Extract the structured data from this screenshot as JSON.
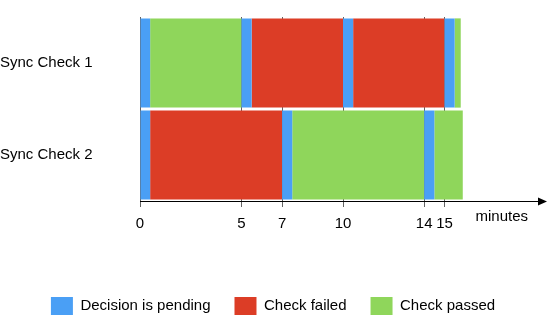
{
  "chart_data": {
    "type": "timeline",
    "orientation": "horizontal",
    "categories": [
      "Sync Check 1",
      "Sync Check 2"
    ],
    "x_label": "minutes",
    "xlim": [
      0,
      20
    ],
    "xticks": [
      0,
      5,
      7,
      10,
      14,
      15
    ],
    "grid": true,
    "legend": "bottom",
    "series": [
      {
        "name": "Decision is pending",
        "color": "#4a9ff5",
        "values": [
          [
            [
              0,
              0.5
            ],
            [
              5,
              5.5
            ],
            [
              10,
              10.5
            ],
            [
              15,
              15.5
            ]
          ],
          [
            [
              0,
              0.5
            ],
            [
              7,
              7.5
            ],
            [
              14,
              14.5
            ]
          ]
        ]
      },
      {
        "name": "Check failed",
        "color": "#dc3d26",
        "values": [
          [
            [
              5.5,
              10
            ],
            [
              10.5,
              15
            ]
          ],
          [
            [
              0.5,
              7
            ]
          ]
        ]
      },
      {
        "name": "Check passed",
        "color": "#8fd65b",
        "values": [
          [
            [
              0.5,
              5
            ],
            [
              15.5,
              15.8
            ]
          ],
          [
            [
              7.5,
              14
            ],
            [
              14.5,
              15.9
            ]
          ]
        ]
      }
    ]
  }
}
